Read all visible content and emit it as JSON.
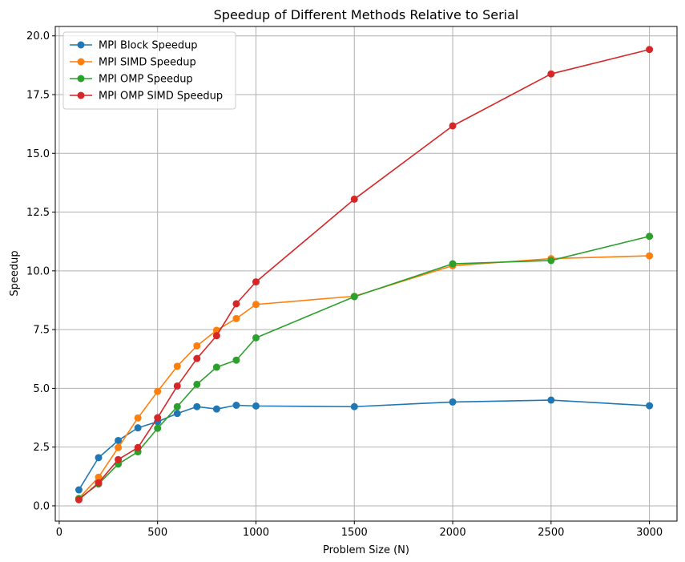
{
  "chart_data": {
    "type": "line",
    "title": "Speedup of Different Methods Relative to Serial",
    "xlabel": "Problem Size (N)",
    "ylabel": "Speedup",
    "xlim": [
      -20,
      3140
    ],
    "ylim": [
      -0.65,
      20.4
    ],
    "xticks": [
      0,
      500,
      1000,
      1500,
      2000,
      2500,
      3000
    ],
    "xtick_labels": [
      "0",
      "500",
      "1000",
      "1500",
      "2000",
      "2500",
      "3000"
    ],
    "yticks": [
      0.0,
      2.5,
      5.0,
      7.5,
      10.0,
      12.5,
      15.0,
      17.5,
      20.0
    ],
    "ytick_labels": [
      "0.0",
      "2.5",
      "5.0",
      "7.5",
      "10.0",
      "12.5",
      "15.0",
      "17.5",
      "20.0"
    ],
    "grid": true,
    "legend_position": "top-left",
    "x": [
      100,
      200,
      300,
      400,
      500,
      600,
      700,
      800,
      900,
      1000,
      1500,
      2000,
      2500,
      3000
    ],
    "series": [
      {
        "name": "MPI Block Speedup",
        "color": "#1f77b4",
        "values": [
          0.68,
          2.05,
          2.78,
          3.32,
          3.58,
          3.93,
          4.22,
          4.12,
          4.28,
          4.25,
          4.22,
          4.42,
          4.5,
          4.26
        ]
      },
      {
        "name": "MPI SIMD Speedup",
        "color": "#ff7f0e",
        "values": [
          0.32,
          1.22,
          2.48,
          3.74,
          4.87,
          5.94,
          6.81,
          7.47,
          7.97,
          8.57,
          8.92,
          10.22,
          10.52,
          10.64
        ]
      },
      {
        "name": "MPI OMP Speedup",
        "color": "#2ca02c",
        "values": [
          0.3,
          0.93,
          1.78,
          2.3,
          3.3,
          4.22,
          5.17,
          5.9,
          6.2,
          7.15,
          8.9,
          10.3,
          10.44,
          11.47
        ]
      },
      {
        "name": "MPI OMP SIMD Speedup",
        "color": "#d62728",
        "values": [
          0.26,
          0.98,
          1.97,
          2.48,
          3.75,
          5.1,
          6.27,
          7.24,
          8.6,
          9.53,
          13.05,
          16.17,
          18.38,
          19.42
        ]
      }
    ]
  }
}
